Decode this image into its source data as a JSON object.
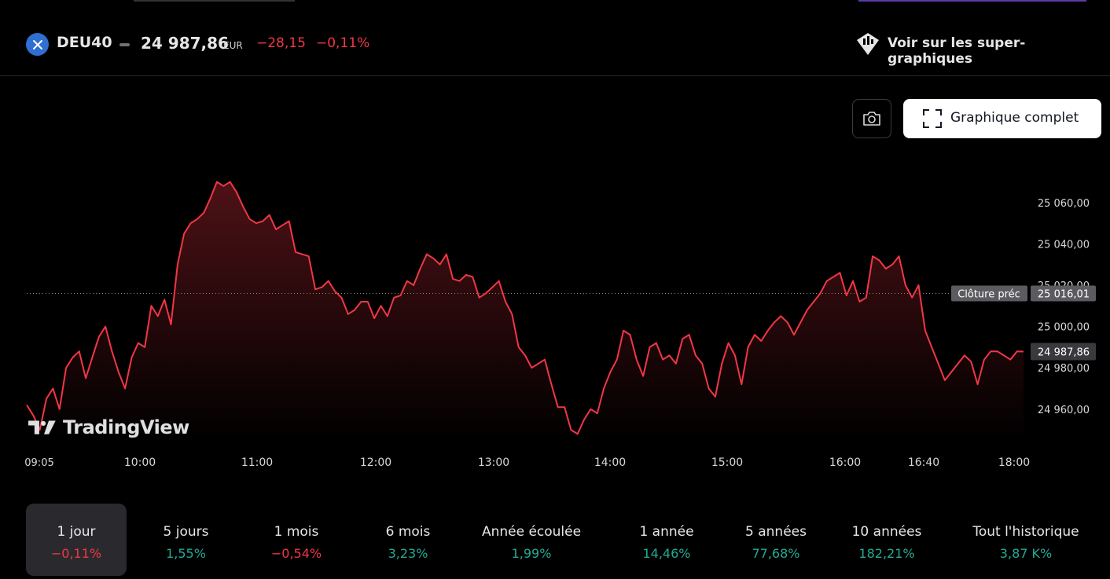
{
  "header": {
    "symbol": "DEU40",
    "price": "24 987,86",
    "currency": "EUR",
    "change": "−28,15",
    "change_pct": "−0,11%",
    "super_charts_link": "Voir sur les super-graphiques"
  },
  "toolbar": {
    "full_chart_label": "Graphique complet",
    "camera_icon": "camera-icon",
    "fullscreen_icon": "fullscreen-icon"
  },
  "watermark": {
    "brand": "TradingView"
  },
  "colors": {
    "line": "#f23645",
    "positive": "#22ab94",
    "negative": "#f23645",
    "background": "#000000"
  },
  "chart_data": {
    "type": "area",
    "x_ticks": [
      "09:05",
      "10:00",
      "11:00",
      "12:00",
      "13:00",
      "14:00",
      "15:00",
      "16:00",
      "16:40",
      "18:00"
    ],
    "y_ticks": [
      "25 060,00",
      "25 040,00",
      "25 020,00",
      "25 000,00",
      "24 980,00",
      "24 960,00"
    ],
    "y_tick_values": [
      25060,
      25040,
      25020,
      25000,
      24980,
      24960
    ],
    "ylim": [
      24950,
      25075
    ],
    "prev_close": {
      "label": "Clôture préc",
      "value": 25016.01,
      "value_label": "25 016,01"
    },
    "last": {
      "value": 24987.86,
      "value_label": "24 987,86"
    },
    "series": [
      {
        "values": [
          24962,
          24957,
          24950,
          24965,
          24970,
          24960,
          24980,
          24985,
          24988,
          24975,
          24985,
          24995,
          25000,
          24988,
          24978,
          24970,
          24985,
          24992,
          24990,
          25010,
          25005,
          25013,
          25001,
          25030,
          25045,
          25050,
          25052,
          25055,
          25062,
          25070,
          25068,
          25070,
          25065,
          25058,
          25052,
          25050,
          25051,
          25054,
          25047,
          25049,
          25051,
          25036,
          25035,
          25034,
          25018,
          25019,
          25022,
          25017,
          25014,
          25006,
          25008,
          25012,
          25012,
          25004,
          25010,
          25005,
          25014,
          25015,
          25022,
          25020,
          25028,
          25035,
          25033,
          25030,
          25035,
          25023,
          25022,
          25025,
          25024,
          25014,
          25016,
          25019,
          25022,
          25012,
          25006,
          24990,
          24986,
          24980,
          24982,
          24984,
          24972,
          24961,
          24961,
          24950,
          24948,
          24955,
          24960,
          24958,
          24970,
          24978,
          24984,
          24998,
          24996,
          24984,
          24976,
          24990,
          24992,
          24984,
          24986,
          24982,
          24994,
          24996,
          24986,
          24982,
          24970,
          24966,
          24982,
          24992,
          24986,
          24972,
          24990,
          24996,
          24993,
          24998,
          25002,
          25005,
          25002,
          24996,
          25002,
          25008,
          25012,
          25016,
          25022,
          25024,
          25026,
          25015,
          25022,
          25012,
          25014,
          25034,
          25032,
          25028,
          25030,
          25034,
          25020,
          25014,
          25020,
          24998,
          24990,
          24982,
          24974,
          24978,
          24982,
          24986,
          24983,
          24972,
          24984,
          24988,
          24988,
          24986,
          24984,
          24988,
          24987.86
        ]
      }
    ]
  },
  "periods": [
    {
      "label": "1 jour",
      "value": "−0,11%",
      "trend": "neg",
      "active": true
    },
    {
      "label": "5 jours",
      "value": "1,55%",
      "trend": "pos"
    },
    {
      "label": "1 mois",
      "value": "−0,54%",
      "trend": "neg"
    },
    {
      "label": "6 mois",
      "value": "3,23%",
      "trend": "pos"
    },
    {
      "label": "Année écoulée",
      "value": "1,99%",
      "trend": "pos"
    },
    {
      "label": "1 année",
      "value": "14,46%",
      "trend": "pos"
    },
    {
      "label": "5 années",
      "value": "77,68%",
      "trend": "pos"
    },
    {
      "label": "10 années",
      "value": "182,21%",
      "trend": "pos"
    },
    {
      "label": "Tout l'historique",
      "value": "3,87 K%",
      "trend": "pos"
    }
  ]
}
